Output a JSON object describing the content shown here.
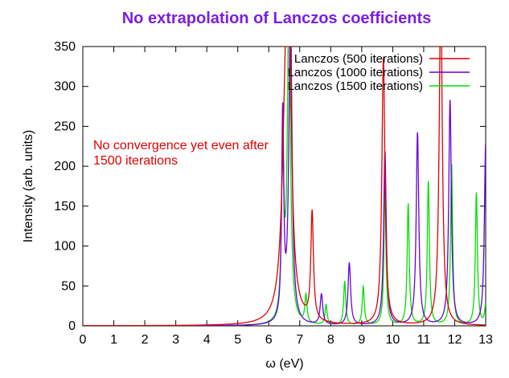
{
  "chart_data": {
    "type": "line",
    "title": "No extrapolation of Lanczos coefficients",
    "title_color": "#7a1fe0",
    "xlabel": "ω (eV)",
    "ylabel": "Intensity (arb. units)",
    "xlim": [
      0,
      13
    ],
    "ylim": [
      0,
      350
    ],
    "xticks": [
      "0",
      "1",
      "2",
      "3",
      "4",
      "5",
      "6",
      "7",
      "8",
      "9",
      "10",
      "11",
      "12",
      "13"
    ],
    "yticks": [
      "0",
      "50",
      "100",
      "150",
      "200",
      "250",
      "300",
      "350"
    ],
    "legend_position": "top-right",
    "annotation": {
      "lines": [
        "No convergence yet even after",
        "1500 iterations"
      ],
      "color": "#e00000"
    },
    "series": [
      {
        "name": "Lanczos (500 iterations)",
        "color": "#e00000",
        "peaks": [
          [
            6.55,
            250,
            0.14
          ],
          [
            6.65,
            330,
            0.08
          ],
          [
            7.4,
            135,
            0.05
          ],
          [
            9.7,
            335,
            0.06
          ],
          [
            11.55,
            420,
            0.06
          ]
        ]
      },
      {
        "name": "Lanczos (1000 iterations)",
        "color": "#6a00d8",
        "peaks": [
          [
            6.45,
            258,
            0.04
          ],
          [
            6.7,
            400,
            0.06
          ],
          [
            7.7,
            38,
            0.05
          ],
          [
            8.6,
            78,
            0.05
          ],
          [
            9.75,
            218,
            0.05
          ],
          [
            10.8,
            241,
            0.05
          ],
          [
            11.85,
            282,
            0.05
          ],
          [
            13.0,
            228,
            0.05
          ]
        ]
      },
      {
        "name": "Lanczos (1500 iterations)",
        "color": "#00e000",
        "peaks": [
          [
            6.45,
            200,
            0.05
          ],
          [
            6.65,
            400,
            0.06
          ],
          [
            7.2,
            35,
            0.04
          ],
          [
            7.85,
            25,
            0.04
          ],
          [
            8.45,
            55,
            0.04
          ],
          [
            9.05,
            48,
            0.04
          ],
          [
            9.75,
            170,
            0.04
          ],
          [
            10.5,
            152,
            0.04
          ],
          [
            11.15,
            180,
            0.04
          ],
          [
            11.9,
            202,
            0.04
          ],
          [
            12.7,
            166,
            0.04
          ],
          [
            13.0,
            25,
            0.04
          ]
        ]
      }
    ]
  }
}
